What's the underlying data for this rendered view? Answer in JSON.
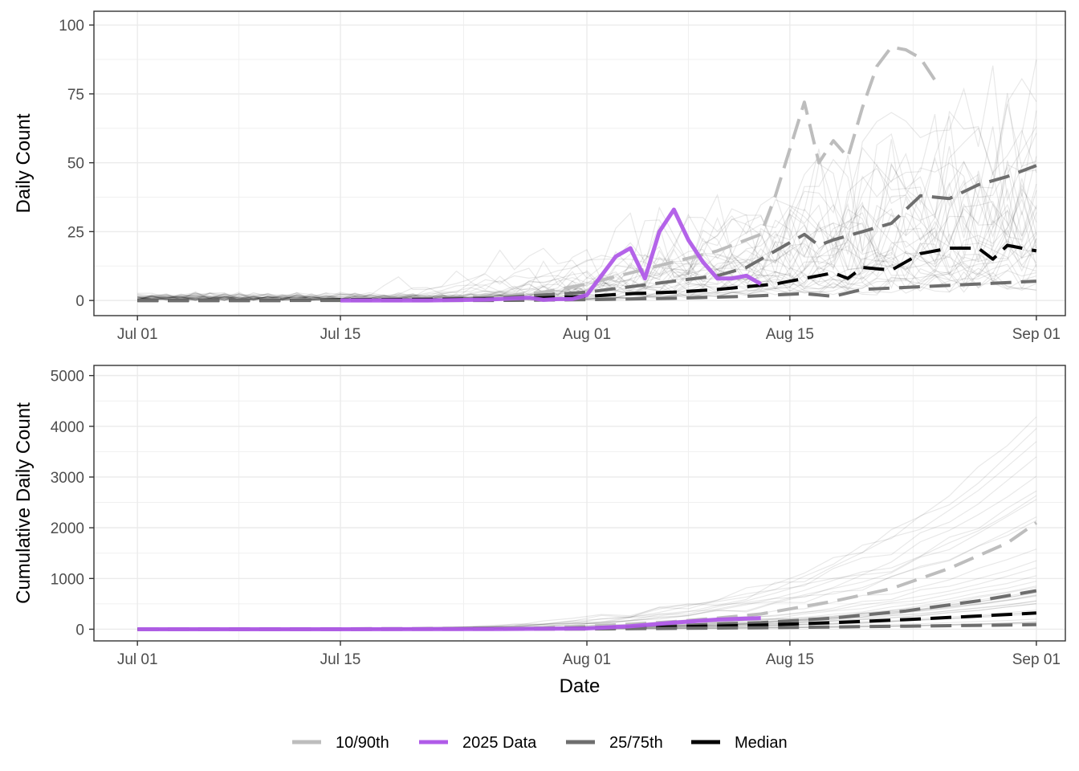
{
  "chart_data": [
    {
      "type": "line",
      "panel": "top",
      "title": "",
      "xlabel": "",
      "ylabel": "Daily Count",
      "x_ticks": [
        {
          "label": "Jul 01",
          "day": 0
        },
        {
          "label": "Jul 15",
          "day": 14
        },
        {
          "label": "Aug 01",
          "day": 31
        },
        {
          "label": "Aug 15",
          "day": 45
        },
        {
          "label": "Sep 01",
          "day": 62
        }
      ],
      "xlim": [
        -3,
        64
      ],
      "y_ticks": [
        0,
        25,
        50,
        75,
        100
      ],
      "ylim": [
        -5.5,
        105
      ],
      "grid": true,
      "series": [
        {
          "name": "10/90th",
          "style": "dashed",
          "color": "#bdbdbd",
          "x": [
            0,
            5,
            10,
            14,
            20,
            25,
            28,
            31,
            34,
            37,
            40,
            43,
            44,
            45,
            46,
            47,
            48,
            49,
            50,
            51,
            52,
            53,
            54,
            55
          ],
          "y": [
            0,
            0,
            0.2,
            0.5,
            0.8,
            1.5,
            3,
            6,
            10,
            14,
            18,
            24,
            38,
            55,
            72,
            50,
            58,
            52,
            70,
            85,
            92,
            91,
            88,
            80
          ]
        },
        {
          "name": "25/75th",
          "style": "dashed",
          "color": "#6e6e6e",
          "x": [
            0,
            10,
            14,
            20,
            25,
            28,
            31,
            34,
            37,
            40,
            42,
            44,
            46,
            47,
            48,
            50,
            52,
            54,
            56,
            58,
            60,
            62
          ],
          "y": [
            0,
            0,
            0.3,
            0.6,
            1,
            2,
            3,
            5,
            7,
            9,
            12,
            18,
            24,
            20,
            22,
            25,
            28,
            38,
            37,
            42,
            45,
            49
          ]
        },
        {
          "name": "Median",
          "style": "dashed",
          "color": "#000000",
          "x": [
            0,
            10,
            14,
            20,
            25,
            28,
            31,
            34,
            37,
            40,
            42,
            44,
            46,
            48,
            49,
            50,
            52,
            54,
            56,
            58,
            59,
            60,
            62
          ],
          "y": [
            0,
            0,
            0.2,
            0.3,
            0.6,
            1,
            1.5,
            2.5,
            3,
            4,
            5,
            6,
            8,
            10,
            8,
            12,
            11,
            17,
            19,
            19,
            15,
            20,
            18
          ]
        },
        {
          "name": "25/75th low",
          "style": "dashed",
          "color": "#6e6e6e",
          "x": [
            0,
            14,
            25,
            31,
            37,
            42,
            46,
            48,
            50,
            54,
            58,
            62
          ],
          "y": [
            0,
            0,
            0,
            0.3,
            0.8,
            1.5,
            2.5,
            1.5,
            4,
            5,
            6,
            7
          ]
        },
        {
          "name": "2025 Data",
          "style": "solid",
          "color": "#b05be8",
          "x": [
            14,
            20,
            24,
            27,
            28,
            29,
            30,
            31,
            32,
            33,
            34,
            35,
            36,
            37,
            38,
            39,
            40,
            41,
            42,
            43
          ],
          "y": [
            0,
            0,
            0.3,
            1,
            0.2,
            0.5,
            0.5,
            2,
            9,
            16,
            19,
            8,
            25,
            33,
            22,
            14,
            8,
            8,
            9,
            6
          ]
        }
      ]
    },
    {
      "type": "line",
      "panel": "bottom",
      "title": "",
      "xlabel": "Date",
      "ylabel": "Cumulative Daily Count",
      "x_ticks": [
        {
          "label": "Jul 01",
          "day": 0
        },
        {
          "label": "Jul 15",
          "day": 14
        },
        {
          "label": "Aug 01",
          "day": 31
        },
        {
          "label": "Aug 15",
          "day": 45
        },
        {
          "label": "Sep 01",
          "day": 62
        }
      ],
      "xlim": [
        -3,
        64
      ],
      "y_ticks": [
        0,
        1000,
        2000,
        3000,
        4000,
        5000
      ],
      "ylim": [
        -230,
        5200
      ],
      "grid": true,
      "series": [
        {
          "name": "10/90th",
          "style": "dashed",
          "color": "#bdbdbd",
          "x": [
            0,
            20,
            28,
            31,
            34,
            37,
            40,
            43,
            45,
            48,
            52,
            56,
            60,
            62
          ],
          "y": [
            0,
            5,
            30,
            60,
            100,
            150,
            220,
            300,
            400,
            550,
            800,
            1200,
            1700,
            2100
          ]
        },
        {
          "name": "25/75th",
          "style": "dashed",
          "color": "#6e6e6e",
          "x": [
            0,
            28,
            31,
            37,
            43,
            48,
            53,
            58,
            62
          ],
          "y": [
            0,
            15,
            30,
            70,
            130,
            220,
            360,
            560,
            760
          ]
        },
        {
          "name": "Median",
          "style": "dashed",
          "color": "#000000",
          "x": [
            0,
            28,
            31,
            37,
            43,
            48,
            53,
            58,
            62
          ],
          "y": [
            0,
            10,
            20,
            45,
            80,
            130,
            190,
            260,
            320
          ]
        },
        {
          "name": "25/75th low",
          "style": "dashed",
          "color": "#6e6e6e",
          "x": [
            0,
            31,
            43,
            53,
            62
          ],
          "y": [
            0,
            5,
            30,
            60,
            90
          ]
        },
        {
          "name": "2025 Data",
          "style": "solid",
          "color": "#b05be8",
          "x": [
            0,
            14,
            25,
            31,
            34,
            37,
            40,
            43
          ],
          "y": [
            0,
            0,
            5,
            15,
            60,
            130,
            190,
            220
          ]
        }
      ]
    }
  ],
  "legend": {
    "placement": "bottom",
    "items": [
      {
        "label": "10/90th",
        "color": "#bdbdbd"
      },
      {
        "label": "2025 Data",
        "color": "#b05be8"
      },
      {
        "label": "25/75th",
        "color": "#6e6e6e"
      },
      {
        "label": "Median",
        "color": "#000000"
      }
    ]
  }
}
